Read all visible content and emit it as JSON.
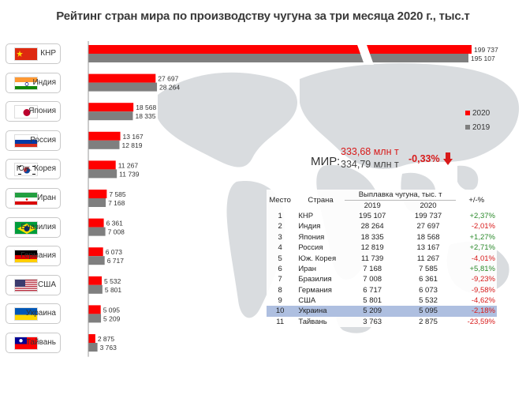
{
  "title": "Рейтинг стран мира по производству чугуна за три месяца 2020 г., тыс.т",
  "legend": [
    {
      "label": "2020",
      "color": "#ff0000"
    },
    {
      "label": "2019",
      "color": "#7f7f7f"
    }
  ],
  "colors": {
    "y2020": "#ff0000",
    "y2019": "#7f7f7f",
    "positive": "#2b8a2b",
    "negative": "#d81a1a",
    "highlight_row": "#aebfe0"
  },
  "world": {
    "label": "МИР:",
    "value_2020": "333,68 млн т",
    "value_2019": "334,79 млн т",
    "change": "-0,33%"
  },
  "flags": [
    {
      "country": "КНР",
      "icon": "china-flag-icon"
    },
    {
      "country": "Индия",
      "icon": "india-flag-icon"
    },
    {
      "country": "Япония",
      "icon": "japan-flag-icon"
    },
    {
      "country": "Россия",
      "icon": "russia-flag-icon"
    },
    {
      "country": "Юж. Корея",
      "icon": "south-korea-flag-icon"
    },
    {
      "country": "Иран",
      "icon": "iran-flag-icon"
    },
    {
      "country": "Бразилия",
      "icon": "brazil-flag-icon"
    },
    {
      "country": "Германия",
      "icon": "germany-flag-icon"
    },
    {
      "country": "США",
      "icon": "usa-flag-icon"
    },
    {
      "country": "Украина",
      "icon": "ukraine-flag-icon"
    },
    {
      "country": "Тайвань",
      "icon": "taiwan-flag-icon"
    }
  ],
  "chart_data": {
    "type": "bar",
    "orientation": "horizontal",
    "categories": [
      "КНР",
      "Индия",
      "Япония",
      "Россия",
      "Юж. Корея",
      "Иран",
      "Бразилия",
      "Германия",
      "США",
      "Украина",
      "Тайвань"
    ],
    "series": [
      {
        "name": "2020",
        "values": [
          199737,
          27697,
          18568,
          13167,
          11267,
          7585,
          6361,
          6073,
          5532,
          5095,
          2875
        ],
        "labels": [
          "199 737",
          "27 697",
          "18 568",
          "13 167",
          "11 267",
          "7 585",
          "6 361",
          "6 073",
          "5 532",
          "5 095",
          "2 875"
        ]
      },
      {
        "name": "2019",
        "values": [
          195107,
          28264,
          18335,
          12819,
          11739,
          7168,
          7008,
          6717,
          5801,
          5209,
          3763
        ],
        "labels": [
          "195 107",
          "28 264",
          "18 335",
          "12 819",
          "11 739",
          "7 168",
          "7 008",
          "6 717",
          "5 801",
          "5 209",
          "3 763"
        ]
      }
    ],
    "axis_break": true,
    "legend_placement": "right",
    "grid": false
  },
  "table": {
    "headers": {
      "rank": "Место",
      "country": "Страна",
      "group": "Выплавка чугуна, тыс. т",
      "y2019": "2019",
      "y2020": "2020",
      "change": "+/-%"
    },
    "highlight_rank": "10",
    "rows": [
      {
        "rank": "1",
        "country": "КНР",
        "v2019": "195 107",
        "v2020": "199 737",
        "change": "+2,37%",
        "sign": "pos"
      },
      {
        "rank": "2",
        "country": "Индия",
        "v2019": "28 264",
        "v2020": "27 697",
        "change": "-2,01%",
        "sign": "neg"
      },
      {
        "rank": "3",
        "country": "Япония",
        "v2019": "18 335",
        "v2020": "18 568",
        "change": "+1,27%",
        "sign": "pos"
      },
      {
        "rank": "4",
        "country": "Россия",
        "v2019": "12 819",
        "v2020": "13 167",
        "change": "+2,71%",
        "sign": "pos"
      },
      {
        "rank": "5",
        "country": "Юж. Корея",
        "v2019": "11 739",
        "v2020": "11 267",
        "change": "-4,01%",
        "sign": "neg"
      },
      {
        "rank": "6",
        "country": "Иран",
        "v2019": "7 168",
        "v2020": "7 585",
        "change": "+5,81%",
        "sign": "pos"
      },
      {
        "rank": "7",
        "country": "Бразилия",
        "v2019": "7 008",
        "v2020": "6 361",
        "change": "-9,23%",
        "sign": "neg"
      },
      {
        "rank": "8",
        "country": "Германия",
        "v2019": "6 717",
        "v2020": "6 073",
        "change": "-9,58%",
        "sign": "neg"
      },
      {
        "rank": "9",
        "country": "США",
        "v2019": "5 801",
        "v2020": "5 532",
        "change": "-4,62%",
        "sign": "neg"
      },
      {
        "rank": "10",
        "country": "Украина",
        "v2019": "5 209",
        "v2020": "5 095",
        "change": "-2,18%",
        "sign": "neg"
      },
      {
        "rank": "11",
        "country": "Тайвань",
        "v2019": "3 763",
        "v2020": "2 875",
        "change": "-23,59%",
        "sign": "neg"
      }
    ]
  }
}
